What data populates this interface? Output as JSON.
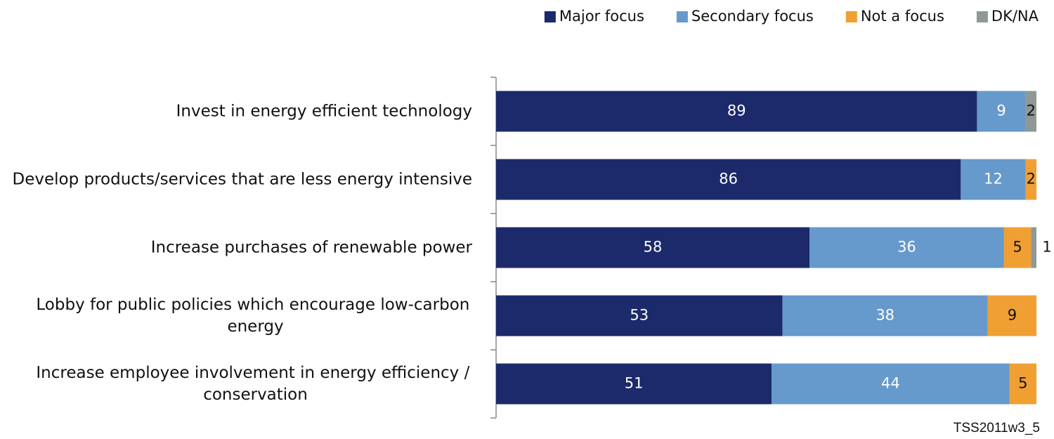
{
  "chart_data": {
    "type": "stacked_bar_horizontal",
    "categories": [
      "Invest in energy efficient technology",
      "Develop products/services that are less energy intensive",
      "Increase purchases of renewable power",
      "Lobby for public policies which encourage low-carbon energy",
      "Increase employee involvement in energy efficiency / conservation"
    ],
    "series": [
      {
        "name": "Major focus",
        "color": "#1c2a6b",
        "values": [
          89,
          86,
          58,
          53,
          51
        ]
      },
      {
        "name": "Secondary focus",
        "color": "#6699cc",
        "values": [
          9,
          12,
          36,
          38,
          44
        ]
      },
      {
        "name": "Not a focus",
        "color": "#f0a032",
        "values": [
          null,
          2,
          5,
          9,
          5
        ]
      },
      {
        "name": "DK/NA",
        "color": "#8e9898",
        "values": [
          2,
          null,
          1,
          null,
          null
        ]
      }
    ],
    "legend": "top-right",
    "footnote": "TSS2011w3_5"
  }
}
